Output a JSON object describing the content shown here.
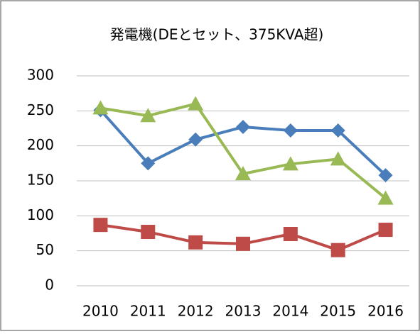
{
  "chart_data": {
    "type": "line",
    "title": "発電機(DEとセット、375KVA超)",
    "categories": [
      "2010",
      "2011",
      "2012",
      "2013",
      "2014",
      "2015",
      "2016"
    ],
    "series": [
      {
        "color": "#4a7ebb",
        "marker": "diamond",
        "values": [
          251,
          175,
          209,
          227,
          222,
          222,
          158
        ]
      },
      {
        "color": "#be4b48",
        "marker": "square",
        "values": [
          87,
          77,
          62,
          60,
          74,
          51,
          80
        ]
      },
      {
        "color": "#98b954",
        "marker": "triangle",
        "values": [
          254,
          243,
          260,
          160,
          174,
          181,
          125
        ]
      }
    ],
    "ylim": [
      0,
      300
    ],
    "yticks": [
      0,
      50,
      100,
      150,
      200,
      250,
      300
    ],
    "grid": true
  }
}
